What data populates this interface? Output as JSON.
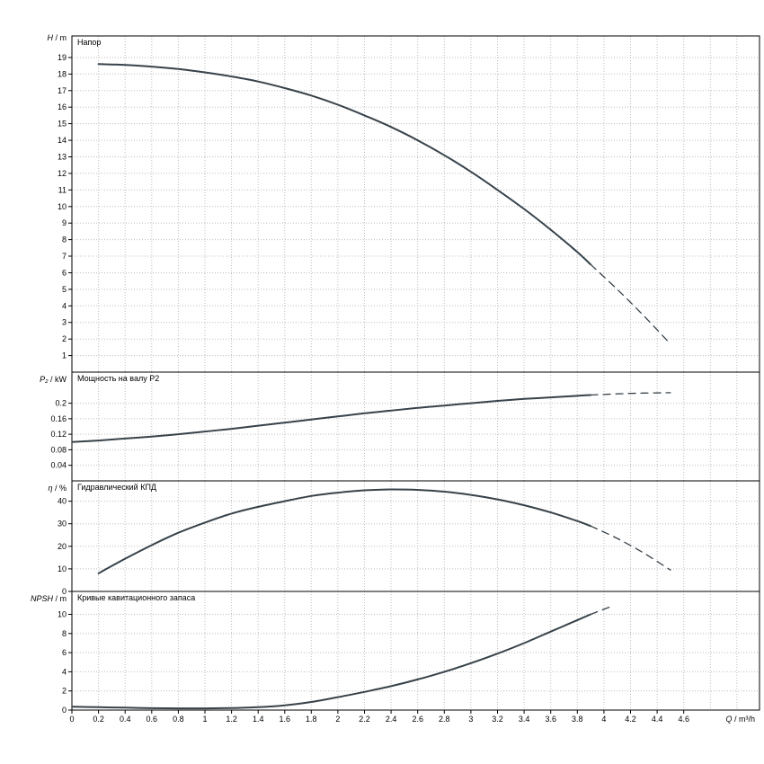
{
  "colors": {
    "curve": "#37424a",
    "grid": "#bdbdbd",
    "axis": "#000000",
    "background": "#ffffff"
  },
  "axis": {
    "x": {
      "min": 0,
      "max": 5.17,
      "grid_step": 0.2,
      "ticks": [
        0,
        0.2,
        0.4,
        0.6,
        0.8,
        1,
        1.2,
        1.4,
        1.6,
        1.8,
        2,
        2.2,
        2.4,
        2.6,
        2.8,
        3,
        3.2,
        3.4,
        3.6,
        3.8,
        4,
        4.2,
        4.4,
        4.6
      ],
      "label_var": "Q",
      "label_unit": "m³/h"
    }
  },
  "chart_data": [
    {
      "type": "line",
      "id": "head",
      "title": "Напор",
      "ylabel_var": "H",
      "ylabel_unit": "m",
      "ylim": [
        0,
        20.3
      ],
      "yticks": [
        1,
        2,
        3,
        4,
        5,
        6,
        7,
        8,
        9,
        10,
        11,
        12,
        13,
        14,
        15,
        16,
        17,
        18,
        19
      ],
      "grid": true,
      "series": [
        {
          "name": "head-solid",
          "style": "solid",
          "points": [
            [
              0.2,
              18.6
            ],
            [
              0.4,
              18.55
            ],
            [
              0.6,
              18.45
            ],
            [
              0.8,
              18.3
            ],
            [
              1.0,
              18.1
            ],
            [
              1.2,
              17.85
            ],
            [
              1.4,
              17.55
            ],
            [
              1.6,
              17.15
            ],
            [
              1.8,
              16.7
            ],
            [
              2.0,
              16.15
            ],
            [
              2.2,
              15.5
            ],
            [
              2.4,
              14.8
            ],
            [
              2.6,
              14.0
            ],
            [
              2.8,
              13.1
            ],
            [
              3.0,
              12.1
            ],
            [
              3.2,
              11.0
            ],
            [
              3.4,
              9.85
            ],
            [
              3.6,
              8.6
            ],
            [
              3.8,
              7.25
            ],
            [
              3.9,
              6.5
            ]
          ]
        },
        {
          "name": "head-extrapolated",
          "style": "dashed",
          "points": [
            [
              3.9,
              6.5
            ],
            [
              4.1,
              5.0
            ],
            [
              4.3,
              3.4
            ],
            [
              4.5,
              1.7
            ]
          ]
        }
      ]
    },
    {
      "type": "line",
      "id": "shaft-power",
      "title": "Мощность на валу P2",
      "ylabel_var": "P₂",
      "ylabel_unit": "kW",
      "ylim": [
        0,
        0.28
      ],
      "yticks": [
        0.04,
        0.08,
        0.12,
        0.16,
        0.2
      ],
      "grid": true,
      "series": [
        {
          "name": "power-solid",
          "style": "solid",
          "points": [
            [
              0,
              0.1
            ],
            [
              0.2,
              0.104
            ],
            [
              0.4,
              0.109
            ],
            [
              0.6,
              0.114
            ],
            [
              0.8,
              0.12
            ],
            [
              1.0,
              0.127
            ],
            [
              1.2,
              0.134
            ],
            [
              1.4,
              0.142
            ],
            [
              1.6,
              0.15
            ],
            [
              1.8,
              0.158
            ],
            [
              2.0,
              0.166
            ],
            [
              2.2,
              0.174
            ],
            [
              2.4,
              0.181
            ],
            [
              2.6,
              0.188
            ],
            [
              2.8,
              0.194
            ],
            [
              3.0,
              0.2
            ],
            [
              3.2,
              0.206
            ],
            [
              3.4,
              0.211
            ],
            [
              3.6,
              0.215
            ],
            [
              3.8,
              0.219
            ],
            [
              3.9,
              0.221
            ]
          ]
        },
        {
          "name": "power-extrapolated",
          "style": "dashed",
          "points": [
            [
              3.9,
              0.221
            ],
            [
              4.1,
              0.224
            ],
            [
              4.3,
              0.226
            ],
            [
              4.5,
              0.227
            ]
          ]
        }
      ]
    },
    {
      "type": "line",
      "id": "efficiency",
      "title": "Гидравлический КПД",
      "ylabel_var": "η",
      "ylabel_unit": "%",
      "ylim": [
        0,
        49
      ],
      "yticks": [
        0,
        10,
        20,
        30,
        40
      ],
      "grid": true,
      "series": [
        {
          "name": "efficiency-solid",
          "style": "solid",
          "points": [
            [
              0.2,
              8
            ],
            [
              0.4,
              14.5
            ],
            [
              0.6,
              20.5
            ],
            [
              0.8,
              26
            ],
            [
              1.0,
              30.5
            ],
            [
              1.2,
              34.5
            ],
            [
              1.4,
              37.5
            ],
            [
              1.6,
              40
            ],
            [
              1.8,
              42.3
            ],
            [
              2.0,
              43.8
            ],
            [
              2.2,
              44.8
            ],
            [
              2.4,
              45.2
            ],
            [
              2.6,
              45.0
            ],
            [
              2.8,
              44.2
            ],
            [
              3.0,
              42.8
            ],
            [
              3.2,
              40.8
            ],
            [
              3.4,
              38.2
            ],
            [
              3.6,
              35
            ],
            [
              3.8,
              31.2
            ],
            [
              3.9,
              29
            ]
          ]
        },
        {
          "name": "efficiency-extrapolated",
          "style": "dashed",
          "points": [
            [
              3.9,
              29
            ],
            [
              4.1,
              23.5
            ],
            [
              4.3,
              17
            ],
            [
              4.5,
              9.5
            ]
          ]
        }
      ]
    },
    {
      "type": "line",
      "id": "npsh",
      "title": "Кривые кавитационного запаса",
      "ylabel_var": "NPSH",
      "ylabel_unit": "m",
      "ylim": [
        0,
        12.4
      ],
      "yticks": [
        0,
        2,
        4,
        6,
        8,
        10
      ],
      "grid": true,
      "series": [
        {
          "name": "npsh-solid",
          "style": "solid",
          "points": [
            [
              0,
              0.35
            ],
            [
              0.2,
              0.3
            ],
            [
              0.4,
              0.25
            ],
            [
              0.6,
              0.2
            ],
            [
              0.8,
              0.18
            ],
            [
              1.0,
              0.18
            ],
            [
              1.2,
              0.22
            ],
            [
              1.4,
              0.3
            ],
            [
              1.6,
              0.5
            ],
            [
              1.8,
              0.85
            ],
            [
              2.0,
              1.35
            ],
            [
              2.2,
              1.9
            ],
            [
              2.4,
              2.5
            ],
            [
              2.6,
              3.2
            ],
            [
              2.8,
              4.0
            ],
            [
              3.0,
              4.9
            ],
            [
              3.2,
              5.9
            ],
            [
              3.4,
              7.0
            ],
            [
              3.6,
              8.2
            ],
            [
              3.8,
              9.4
            ],
            [
              3.9,
              10.0
            ]
          ]
        },
        {
          "name": "npsh-extrapolated",
          "style": "dashed",
          "points": [
            [
              3.9,
              10.0
            ],
            [
              4.05,
              10.8
            ]
          ]
        }
      ]
    }
  ]
}
